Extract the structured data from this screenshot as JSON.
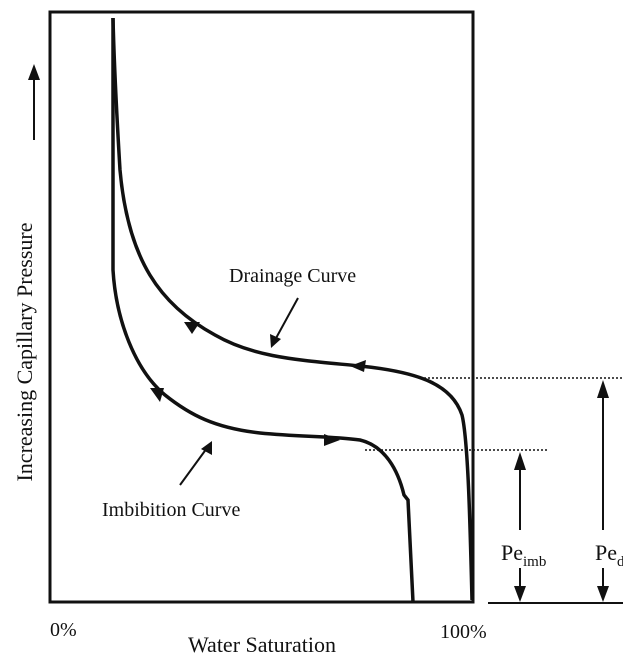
{
  "y_axis_label": "Increasing Capillary Pressure",
  "x_axis_label": "Water Saturation",
  "x_start": "0%",
  "x_end": "100%",
  "drainage_label": "Drainage Curve",
  "imbibition_label": "Imbibition Curve",
  "pe_imb": {
    "base": "Pe",
    "sub": "imb"
  },
  "pe_d": {
    "base": "Pe",
    "sub": "d"
  }
}
